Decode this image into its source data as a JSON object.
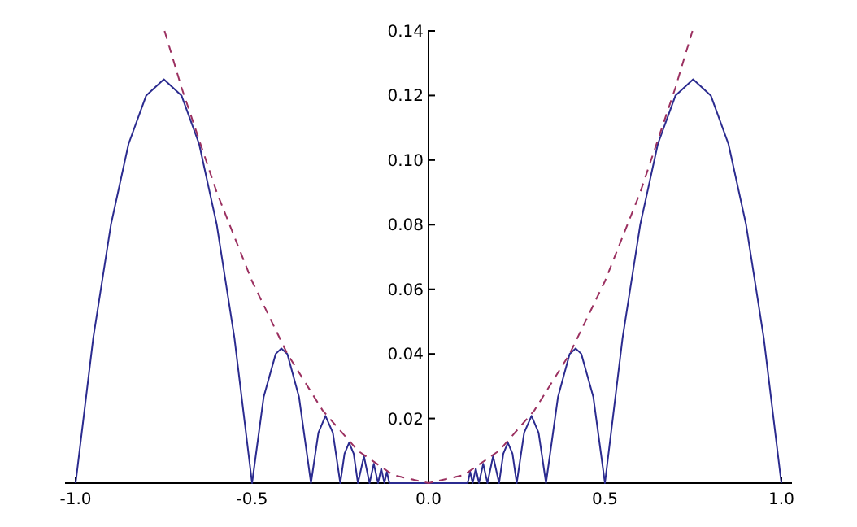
{
  "chart_data": {
    "type": "line",
    "xlim": [
      -1.03,
      1.03
    ],
    "ylim": [
      0,
      0.14
    ],
    "xticks": [
      {
        "value": -1,
        "label": "-1.0"
      },
      {
        "value": -0.5,
        "label": "-0.5"
      },
      {
        "value": 0,
        "label": "0.0"
      },
      {
        "value": 0.5,
        "label": "0.5"
      },
      {
        "value": 1,
        "label": "1.0"
      }
    ],
    "yticks": [
      {
        "value": 0.02,
        "label": "0.02"
      },
      {
        "value": 0.04,
        "label": "0.04"
      },
      {
        "value": 0.06,
        "label": "0.06"
      },
      {
        "value": 0.08,
        "label": "0.08"
      },
      {
        "value": 0.1,
        "label": "0.10"
      },
      {
        "value": 0.12,
        "label": "0.12"
      },
      {
        "value": 0.14,
        "label": "0.14"
      }
    ],
    "grid": false,
    "marker": "none",
    "series": [
      {
        "color": "#2b2b8f",
        "line_style": "solid",
        "x": [
          -1,
          -0.95,
          -0.9,
          -0.85,
          -0.8,
          -0.75,
          -0.7,
          -0.65,
          -0.6,
          -0.55,
          -0.5,
          -0.467,
          -0.433,
          -0.417,
          -0.4,
          -0.367,
          -0.333,
          -0.312,
          -0.292,
          -0.271,
          -0.25,
          -0.238,
          -0.225,
          -0.212,
          -0.2,
          -0.183,
          -0.167,
          -0.155,
          -0.143,
          -0.134,
          -0.125,
          -0.118,
          -0.111,
          0,
          0.111,
          0.118,
          0.125,
          0.134,
          0.143,
          0.155,
          0.167,
          0.183,
          0.2,
          0.212,
          0.225,
          0.238,
          0.25,
          0.271,
          0.292,
          0.312,
          0.333,
          0.367,
          0.4,
          0.417,
          0.433,
          0.467,
          0.5,
          0.55,
          0.6,
          0.65,
          0.7,
          0.75,
          0.8,
          0.85,
          0.9,
          0.95,
          1
        ],
        "values": [
          0,
          0.045,
          0.08,
          0.105,
          0.12,
          0.125,
          0.12,
          0.105,
          0.08,
          0.045,
          0,
          0.0267,
          0.04,
          0.0417,
          0.04,
          0.0267,
          0,
          0.0156,
          0.0208,
          0.0156,
          0,
          0.0091,
          0.0125,
          0.0091,
          0,
          0.0083,
          0,
          0.006,
          0,
          0.0045,
          0,
          0.0035,
          0,
          0,
          0,
          0.0035,
          0,
          0.0045,
          0,
          0.006,
          0,
          0.0083,
          0,
          0.0091,
          0.0125,
          0.0091,
          0,
          0.0156,
          0.0208,
          0.0156,
          0,
          0.0267,
          0.04,
          0.0417,
          0.04,
          0.0267,
          0,
          0.045,
          0.08,
          0.105,
          0.12,
          0.125,
          0.12,
          0.105,
          0.08,
          0.045,
          0
        ]
      },
      {
        "color": "#9b3060",
        "line_style": "dashed",
        "x": [
          -0.748,
          -0.7,
          -0.6,
          -0.5,
          -0.4,
          -0.3,
          -0.2,
          -0.1,
          0,
          0.1,
          0.2,
          0.3,
          0.4,
          0.5,
          0.6,
          0.7,
          0.748
        ],
        "values": [
          0.14,
          0.1225,
          0.09,
          0.0625,
          0.04,
          0.0225,
          0.01,
          0.0025,
          0,
          0.0025,
          0.01,
          0.0225,
          0.04,
          0.0625,
          0.09,
          0.1225,
          0.14
        ]
      }
    ]
  }
}
